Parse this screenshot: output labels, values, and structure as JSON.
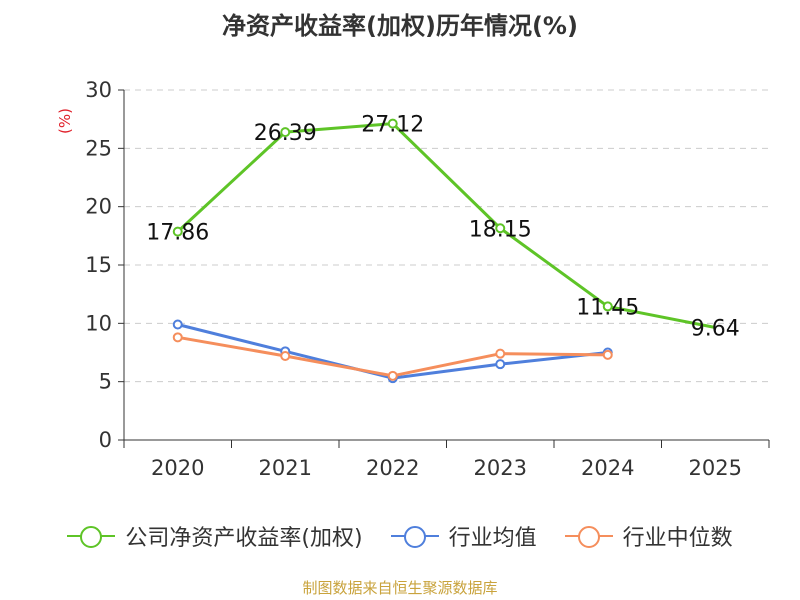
{
  "chart_data": {
    "type": "line",
    "title": "净资产收益率(加权)历年情况(%)",
    "ylabel": "(%)",
    "xlabel": "",
    "categories": [
      "2020",
      "2021",
      "2022",
      "2023",
      "2024",
      "2025"
    ],
    "ylim": [
      0,
      30
    ],
    "yticks": [
      0,
      5,
      10,
      15,
      20,
      25,
      30
    ],
    "grid": true,
    "legend_position": "bottom",
    "series": [
      {
        "name": "公司净资产收益率(加权)",
        "color": "#5ec427",
        "values": [
          17.86,
          26.39,
          27.12,
          18.15,
          11.45,
          9.64
        ],
        "labels": [
          "17.86",
          "26.39",
          "27.12",
          "18.15",
          "11.45",
          "9.64"
        ]
      },
      {
        "name": "行业均值",
        "color": "#4f7fdc",
        "values": [
          9.9,
          7.6,
          5.3,
          6.5,
          7.5,
          null
        ]
      },
      {
        "name": "行业中位数",
        "color": "#f58e5c",
        "values": [
          8.8,
          7.2,
          5.5,
          7.4,
          7.3,
          null
        ]
      }
    ]
  },
  "source": "制图数据来自恒生聚源数据库"
}
